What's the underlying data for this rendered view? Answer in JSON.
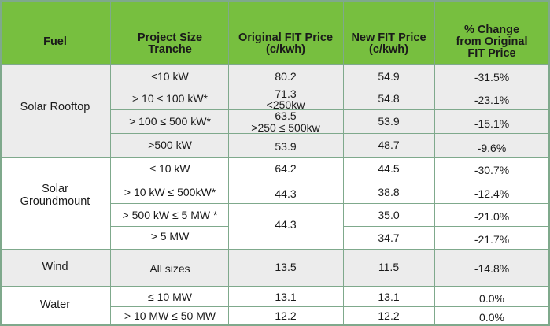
{
  "headers": {
    "fuel": "Fuel",
    "tranche": [
      "Project Size",
      "Tranche"
    ],
    "original": [
      "Original FIT Price",
      "(c/kwh)"
    ],
    "newprice": [
      "New FIT Price",
      "(c/kwh)"
    ],
    "change": [
      "% Change",
      "from Original",
      "FIT Price"
    ]
  },
  "fuels": {
    "rooftop": "Solar Rooftop",
    "groundmount": [
      "Solar",
      "Groundmount"
    ],
    "wind": "Wind",
    "water": "Water"
  },
  "rows": [
    {
      "tranche": "≤10 kW",
      "original": "80.2",
      "new": "54.9",
      "change": "-31.5%"
    },
    {
      "tranche": "> 10 ≤ 100 kW*",
      "original": "71.3",
      "original_note": "<250kw",
      "new": "54.8",
      "change": "-23.1%"
    },
    {
      "tranche": "> 100 ≤ 500 kW*",
      "original": "63.5",
      "original_note": ">250 ≤ 500kw",
      "new": "53.9",
      "change": "-15.1%"
    },
    {
      "tranche": ">500 kW",
      "original": "53.9",
      "new": "48.7",
      "change": "-9.6%"
    },
    {
      "tranche": "≤ 10 kW",
      "original": "64.2",
      "new": "44.5",
      "change": "-30.7%"
    },
    {
      "tranche": "> 10 kW ≤ 500kW*",
      "original": "44.3",
      "new": "38.8",
      "change": "-12.4%"
    },
    {
      "tranche": "> 500 kW ≤ 5 MW *",
      "original": "44.3",
      "new": "35.0",
      "change": "-21.0%"
    },
    {
      "tranche": "> 5 MW",
      "new": "34.7",
      "change": "-21.7%"
    },
    {
      "tranche": "All sizes",
      "original": "13.5",
      "new": "11.5",
      "change": "-14.8%"
    },
    {
      "tranche": "≤ 10 MW",
      "original": "13.1",
      "new": "13.1",
      "change": "0.0%"
    },
    {
      "tranche": "> 10 MW ≤ 50 MW",
      "original": "12.2",
      "new": "12.2",
      "change": "0.0%"
    }
  ],
  "colors": {
    "header": "#77bf3f",
    "band": "#ececec",
    "grid": "#7fa98c"
  }
}
